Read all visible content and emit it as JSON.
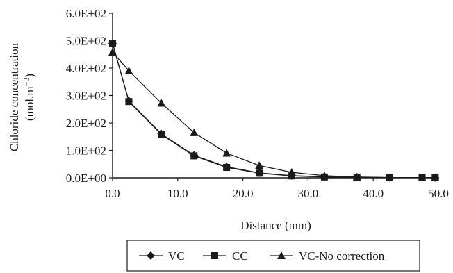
{
  "chart_data": {
    "type": "line",
    "xlabel": "Distance (mm)",
    "ylabel_line1": "Chloride concentration",
    "ylabel_line2_main": "(mol.m",
    "ylabel_line2_sup": "−3",
    "ylabel_line2_end": ")",
    "xlim": [
      0,
      50
    ],
    "ylim": [
      0,
      600
    ],
    "x_ticks": [
      0,
      10,
      20,
      30,
      40,
      50
    ],
    "x_tick_labels": [
      "0.0",
      "10.0",
      "20.0",
      "30.0",
      "40.0",
      "50.0"
    ],
    "y_ticks": [
      0,
      100,
      200,
      300,
      400,
      500,
      600
    ],
    "y_tick_labels": [
      "0.0E+00",
      "1.0E+02",
      "2.0E+02",
      "3.0E+02",
      "4.0E+02",
      "5.0E+02",
      "6.0E+02"
    ],
    "grid": false,
    "legend_position": "bottom",
    "x": [
      0,
      2.5,
      7.5,
      12.5,
      17.5,
      22.5,
      27.5,
      32.5,
      37.5,
      42.5,
      47.5,
      49.5
    ],
    "series": [
      {
        "name": "VC",
        "marker": "diamond",
        "values": [
          490,
          280,
          160,
          82,
          40,
          18,
          8,
          4,
          2,
          1,
          0.5,
          0.5
        ]
      },
      {
        "name": "CC",
        "marker": "square",
        "values": [
          490,
          278,
          158,
          80,
          38,
          17,
          7,
          3,
          1.5,
          1,
          0.5,
          0.5
        ]
      },
      {
        "name": "VC-No correction",
        "marker": "triangle",
        "values": [
          458,
          390,
          272,
          165,
          90,
          45,
          20,
          8,
          3,
          1,
          0.5,
          0.5
        ]
      }
    ],
    "colors": {
      "line": "#1a1a1a",
      "background": "#ffffff"
    }
  }
}
